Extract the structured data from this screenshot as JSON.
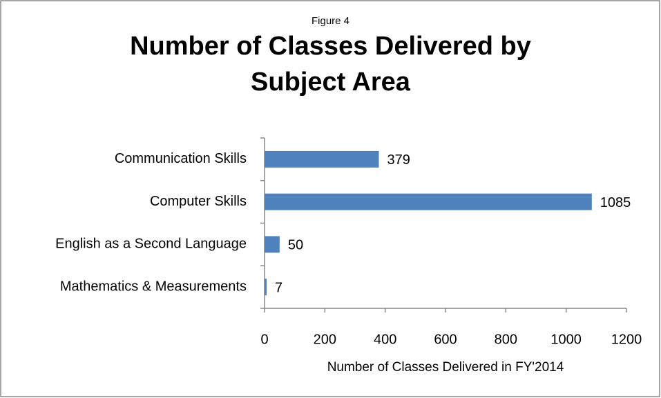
{
  "chart_data": {
    "type": "bar",
    "orientation": "horizontal",
    "subtitle": "Figure 4",
    "title": "Number of Classes Delivered by Subject Area",
    "categories": [
      "Communication Skills",
      "Computer Skills",
      "English as a Second Language",
      "Mathematics & Measurements"
    ],
    "values": [
      379,
      1085,
      50,
      7
    ],
    "color": "#4f81bd",
    "xlabel": "Number of Classes Delivered in FY'2014",
    "xlim": [
      0,
      1200
    ],
    "xticks": [
      0,
      200,
      400,
      600,
      800,
      1000,
      1200
    ],
    "grid": false
  }
}
